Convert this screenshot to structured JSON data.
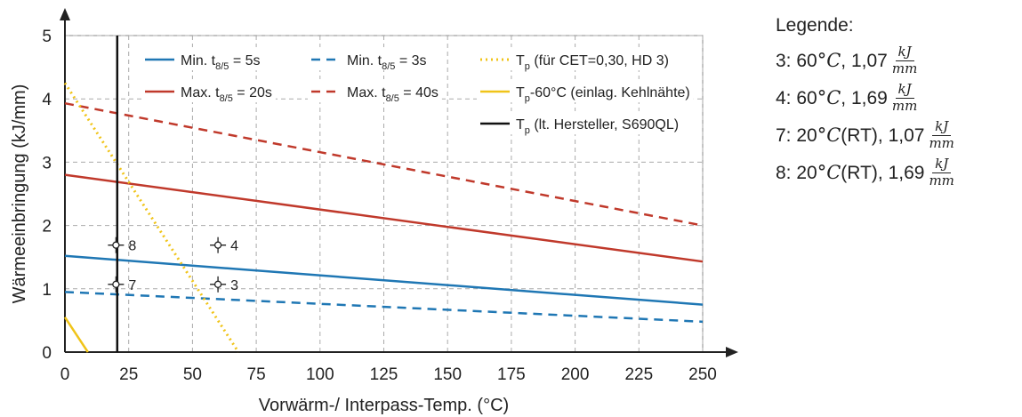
{
  "chart_data": {
    "type": "line",
    "xlabel": "Vorwärm-/ Interpass-Temp. (°C)",
    "ylabel": "Wärmeeinbringung (kJ/mm)",
    "xlim": [
      0,
      250
    ],
    "ylim": [
      0,
      5
    ],
    "xticks": [
      "0",
      "25",
      "50",
      "75",
      "100",
      "125",
      "150",
      "175",
      "200",
      "225",
      "250"
    ],
    "yticks": [
      "0",
      "1",
      "2",
      "3",
      "4",
      "5"
    ],
    "grid": true,
    "legend_position": "top",
    "series": [
      {
        "name": "Min. t8/5 = 5s",
        "label_main": "Min. t",
        "label_sub": "8/5",
        "label_rest": " = 5s",
        "color": "#1f77b4",
        "style": "solid",
        "x": [
          0,
          250
        ],
        "y": [
          1.52,
          0.75
        ]
      },
      {
        "name": "Max. t8/5 = 20s",
        "label_main": "Max. t",
        "label_sub": "8/5",
        "label_rest": " = 20s",
        "color": "#c0392b",
        "style": "solid",
        "x": [
          0,
          250
        ],
        "y": [
          2.8,
          1.43
        ]
      },
      {
        "name": "Min. t8/5 = 3s",
        "label_main": "Min. t",
        "label_sub": "8/5",
        "label_rest": " = 3s",
        "color": "#1f77b4",
        "style": "dashed",
        "x": [
          0,
          250
        ],
        "y": [
          0.95,
          0.48
        ]
      },
      {
        "name": "Max. t8/5 = 40s",
        "label_main": "Max. t",
        "label_sub": "8/5",
        "label_rest": " = 40s",
        "color": "#c0392b",
        "style": "dashed",
        "x": [
          0,
          250
        ],
        "y": [
          3.93,
          2.0
        ]
      },
      {
        "name": "Tp (für CET=0,30, HD 3)",
        "label_main": "T",
        "label_sub": "p",
        "label_rest": " (für CET=0,30, HD 3)",
        "color": "#f0c419",
        "style": "dotted",
        "x": [
          0,
          68
        ],
        "y": [
          4.25,
          0
        ]
      },
      {
        "name": "Tp-60°C (einlag. Kehlnähte)",
        "label_main": "T",
        "label_sub": "p",
        "label_rest": "-60°C (einlag. Kehlnähte)",
        "color": "#f0c419",
        "style": "solid",
        "x": [
          0,
          9
        ],
        "y": [
          0.55,
          0
        ]
      },
      {
        "name": "Tp (lt. Hersteller, S690QL)",
        "label_main": "T",
        "label_sub": "p",
        "label_rest": " (lt. Hersteller, S690QL)",
        "color": "#111111",
        "style": "solid",
        "x": [
          20.5,
          20.5
        ],
        "y": [
          0,
          5
        ]
      }
    ],
    "points": [
      {
        "label": "8",
        "x": 20,
        "y": 1.69
      },
      {
        "label": "4",
        "x": 60,
        "y": 1.69
      },
      {
        "label": "7",
        "x": 20,
        "y": 1.07
      },
      {
        "label": "3",
        "x": 60,
        "y": 1.07
      }
    ]
  },
  "side_legend": {
    "title": "Legende:",
    "entries": [
      {
        "prefix": "3: 60 ",
        "unit": "°C",
        "mid": ", 1,07",
        "num": "kJ",
        "den": "mm"
      },
      {
        "prefix": "4: 60 ",
        "unit": "°C",
        "mid": ", 1,69",
        "num": "kJ",
        "den": "mm"
      },
      {
        "prefix": "7: 20 ",
        "unit": "°C",
        "mid": " (RT), 1,07",
        "num": "kJ",
        "den": "mm"
      },
      {
        "prefix": "8: 20 ",
        "unit": "°C",
        "mid": " (RT), 1,69",
        "num": "kJ",
        "den": "mm"
      }
    ]
  }
}
